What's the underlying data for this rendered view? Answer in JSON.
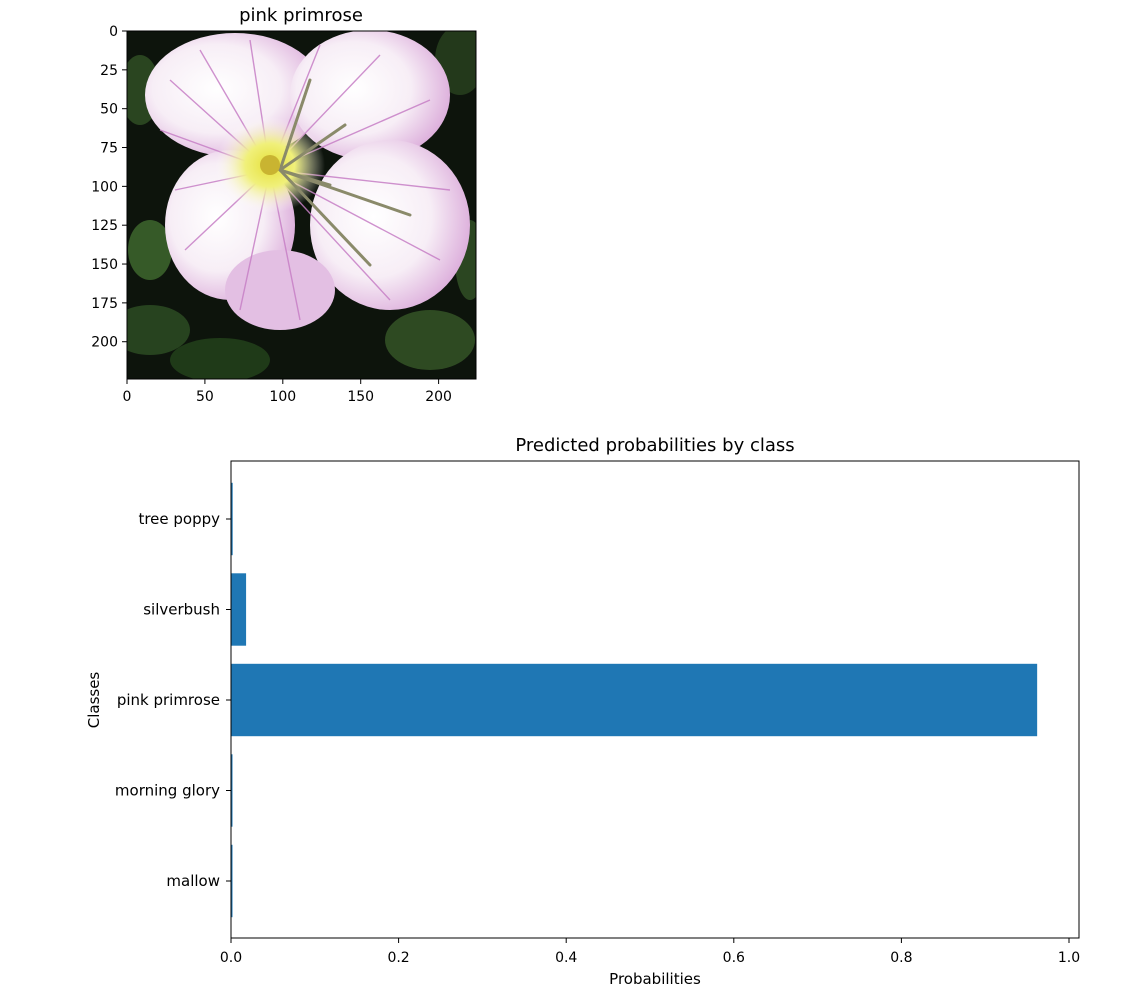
{
  "image_panel": {
    "title": "pink primrose",
    "xticks": [
      0,
      50,
      100,
      150,
      200
    ],
    "yticks": [
      0,
      25,
      50,
      75,
      100,
      125,
      150,
      175,
      200
    ],
    "xlim": [
      0,
      224
    ],
    "ylim": [
      0,
      224
    ],
    "image_subject": "photo of a pink primrose flower: white-pink petals with magenta veins, yellow center, dark green leaves background"
  },
  "chart_data": {
    "type": "bar",
    "orientation": "horizontal",
    "title": "Predicted probabilities by class",
    "xlabel": "Probabilities",
    "ylabel": "Classes",
    "categories": [
      "mallow",
      "morning glory",
      "pink primrose",
      "silverbush",
      "tree poppy"
    ],
    "values": [
      0.001,
      0.001,
      0.962,
      0.018,
      0.002
    ],
    "xlim": [
      0.0,
      1.0
    ],
    "xticks": [
      "0.0",
      "0.2",
      "0.4",
      "0.6",
      "0.8",
      "1.0"
    ],
    "color": "#1f77b4",
    "grid": false
  }
}
